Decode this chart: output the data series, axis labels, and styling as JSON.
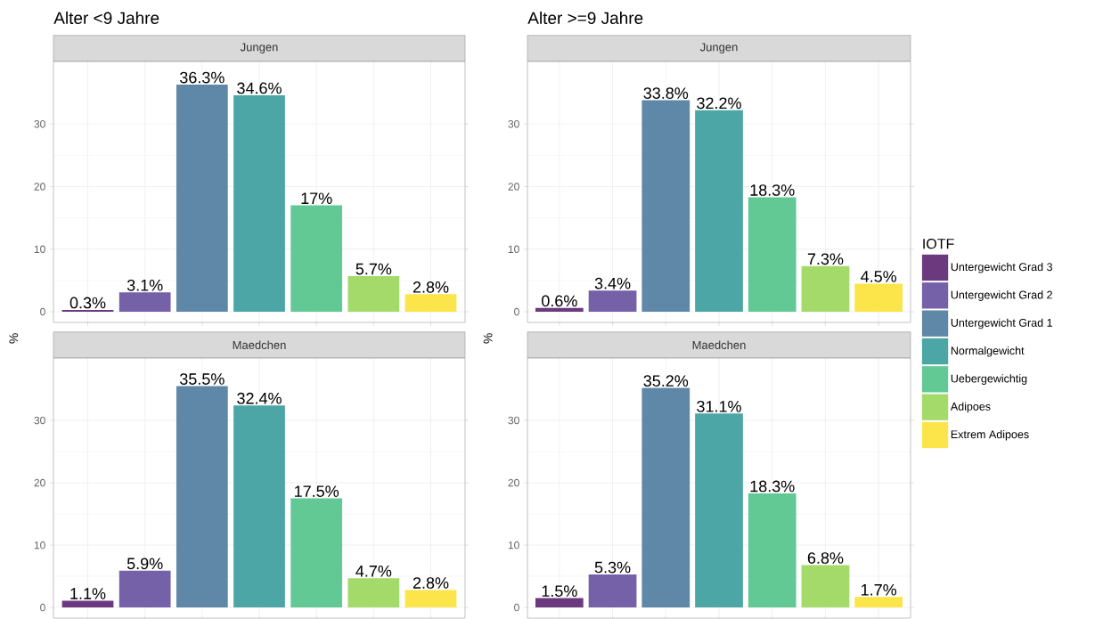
{
  "chart_data": [
    {
      "type": "bar",
      "title": "Alter <9 Jahre",
      "subtitle": "Jungen",
      "ylabel": "%",
      "categories": [
        null,
        null,
        null,
        null,
        null,
        null,
        null
      ],
      "ylim": [
        -1.7,
        40
      ],
      "yticks": [
        0,
        10,
        20,
        30
      ],
      "grid": true,
      "tick_labels": "y",
      "series": [
        {
          "color": "#6b3a7e",
          "values": [
            0.3,
            null,
            null,
            null,
            null,
            null,
            null
          ],
          "value_labels": [
            "0.3%",
            null,
            null,
            null,
            null,
            null,
            null
          ]
        },
        {
          "color": "#7461a8",
          "values": [
            null,
            3.1,
            null,
            null,
            null,
            null,
            null
          ],
          "value_labels": [
            null,
            "3.1%",
            null,
            null,
            null,
            null,
            null
          ]
        },
        {
          "color": "#5f87a8",
          "values": [
            null,
            null,
            36.3,
            null,
            null,
            null,
            null
          ],
          "value_labels": [
            null,
            null,
            "36.3%",
            null,
            null,
            null,
            null
          ]
        },
        {
          "color": "#4ca6a6",
          "values": [
            null,
            null,
            null,
            34.6,
            null,
            null,
            null
          ],
          "value_labels": [
            null,
            null,
            null,
            "34.6%",
            null,
            null,
            null
          ]
        },
        {
          "color": "#62c994",
          "values": [
            null,
            null,
            null,
            null,
            17,
            null,
            null
          ],
          "value_labels": [
            null,
            null,
            null,
            null,
            "17%",
            null,
            null
          ]
        },
        {
          "color": "#a4da6a",
          "values": [
            null,
            null,
            null,
            null,
            null,
            5.7,
            null
          ],
          "value_labels": [
            null,
            null,
            null,
            null,
            null,
            "5.7%",
            null
          ]
        },
        {
          "color": "#fbe54a",
          "values": [
            null,
            null,
            null,
            null,
            null,
            null,
            2.8
          ],
          "value_labels": [
            null,
            null,
            null,
            null,
            null,
            null,
            "2.8%"
          ]
        }
      ]
    },
    {
      "type": "bar",
      "title": "Alter >=9 Jahre",
      "subtitle": "Jungen",
      "ylabel": "%",
      "categories": [
        null,
        null,
        null,
        null,
        null,
        null,
        null
      ],
      "ylim": [
        -1.7,
        40
      ],
      "yticks": [
        0,
        10,
        20,
        30
      ],
      "grid": true,
      "tick_labels": "y",
      "legend": "right",
      "legend_title": "IOTF",
      "series": [
        {
          "name": "Untergewicht Grad 3",
          "color": "#6b3a7e",
          "values": [
            0.6,
            null,
            null,
            null,
            null,
            null,
            null
          ],
          "value_labels": [
            "0.6%",
            null,
            null,
            null,
            null,
            null,
            null
          ]
        },
        {
          "name": "Untergewicht Grad 2",
          "color": "#7461a8",
          "values": [
            null,
            3.4,
            null,
            null,
            null,
            null,
            null
          ],
          "value_labels": [
            null,
            "3.4%",
            null,
            null,
            null,
            null,
            null
          ]
        },
        {
          "name": "Untergewicht Grad 1",
          "color": "#5f87a8",
          "values": [
            null,
            null,
            33.8,
            null,
            null,
            null,
            null
          ],
          "value_labels": [
            null,
            null,
            "33.8%",
            null,
            null,
            null,
            null
          ]
        },
        {
          "name": "Normalgewicht",
          "color": "#4ca6a6",
          "values": [
            null,
            null,
            null,
            32.2,
            null,
            null,
            null
          ],
          "value_labels": [
            null,
            null,
            null,
            "32.2%",
            null,
            null,
            null
          ]
        },
        {
          "name": "Uebergewichtig",
          "color": "#62c994",
          "values": [
            null,
            null,
            null,
            null,
            18.3,
            null,
            null
          ],
          "value_labels": [
            null,
            null,
            null,
            null,
            "18.3%",
            null,
            null
          ]
        },
        {
          "name": "Adipoes",
          "color": "#a4da6a",
          "values": [
            null,
            null,
            null,
            null,
            null,
            7.3,
            null
          ],
          "value_labels": [
            null,
            null,
            null,
            null,
            null,
            "7.3%",
            null
          ]
        },
        {
          "name": "Extrem Adipoes",
          "color": "#fbe54a",
          "values": [
            null,
            null,
            null,
            null,
            null,
            null,
            4.5
          ],
          "value_labels": [
            null,
            null,
            null,
            null,
            null,
            null,
            "4.5%"
          ]
        }
      ]
    },
    {
      "type": "bar",
      "subtitle": "Maedchen",
      "categories": [
        null,
        null,
        null,
        null,
        null,
        null,
        null
      ],
      "ylim": [
        -1.7,
        40
      ],
      "yticks": [
        0,
        10,
        20,
        30
      ],
      "grid": true,
      "tick_labels": "y",
      "series": [
        {
          "color": "#6b3a7e",
          "values": [
            1.1,
            null,
            null,
            null,
            null,
            null,
            null
          ],
          "value_labels": [
            "1.1%",
            null,
            null,
            null,
            null,
            null,
            null
          ]
        },
        {
          "color": "#7461a8",
          "values": [
            null,
            5.9,
            null,
            null,
            null,
            null,
            null
          ],
          "value_labels": [
            null,
            "5.9%",
            null,
            null,
            null,
            null,
            null
          ]
        },
        {
          "color": "#5f87a8",
          "values": [
            null,
            null,
            35.5,
            null,
            null,
            null,
            null
          ],
          "value_labels": [
            null,
            null,
            "35.5%",
            null,
            null,
            null,
            null
          ]
        },
        {
          "color": "#4ca6a6",
          "values": [
            null,
            null,
            null,
            32.4,
            null,
            null,
            null
          ],
          "value_labels": [
            null,
            null,
            null,
            "32.4%",
            null,
            null,
            null
          ]
        },
        {
          "color": "#62c994",
          "values": [
            null,
            null,
            null,
            null,
            17.5,
            null,
            null
          ],
          "value_labels": [
            null,
            null,
            null,
            null,
            "17.5%",
            null,
            null
          ]
        },
        {
          "color": "#a4da6a",
          "values": [
            null,
            null,
            null,
            null,
            null,
            4.7,
            null
          ],
          "value_labels": [
            null,
            null,
            null,
            null,
            null,
            "4.7%",
            null
          ]
        },
        {
          "color": "#fbe54a",
          "values": [
            null,
            null,
            null,
            null,
            null,
            null,
            2.8
          ],
          "value_labels": [
            null,
            null,
            null,
            null,
            null,
            null,
            "2.8%"
          ]
        }
      ]
    },
    {
      "type": "bar",
      "subtitle": "Maedchen",
      "categories": [
        null,
        null,
        null,
        null,
        null,
        null,
        null
      ],
      "ylim": [
        -1.7,
        40
      ],
      "yticks": [
        0,
        10,
        20,
        30
      ],
      "grid": true,
      "tick_labels": "y",
      "series": [
        {
          "color": "#6b3a7e",
          "values": [
            1.5,
            null,
            null,
            null,
            null,
            null,
            null
          ],
          "value_labels": [
            "1.5%",
            null,
            null,
            null,
            null,
            null,
            null
          ]
        },
        {
          "color": "#7461a8",
          "values": [
            null,
            5.3,
            null,
            null,
            null,
            null,
            null
          ],
          "value_labels": [
            null,
            "5.3%",
            null,
            null,
            null,
            null,
            null
          ]
        },
        {
          "color": "#5f87a8",
          "values": [
            null,
            null,
            35.2,
            null,
            null,
            null,
            null
          ],
          "value_labels": [
            null,
            null,
            "35.2%",
            null,
            null,
            null,
            null
          ]
        },
        {
          "color": "#4ca6a6",
          "values": [
            null,
            null,
            null,
            31.1,
            null,
            null,
            null
          ],
          "value_labels": [
            null,
            null,
            null,
            "31.1%",
            null,
            null,
            null
          ]
        },
        {
          "color": "#62c994",
          "values": [
            null,
            null,
            null,
            null,
            18.3,
            null,
            null
          ],
          "value_labels": [
            null,
            null,
            null,
            null,
            "18.3%",
            null,
            null
          ]
        },
        {
          "color": "#a4da6a",
          "values": [
            null,
            null,
            null,
            null,
            null,
            6.8,
            null
          ],
          "value_labels": [
            null,
            null,
            null,
            null,
            null,
            "6.8%",
            null
          ]
        },
        {
          "color": "#fbe54a",
          "values": [
            null,
            null,
            null,
            null,
            null,
            null,
            1.7
          ],
          "value_labels": [
            null,
            null,
            null,
            null,
            null,
            null,
            "1.7%"
          ]
        }
      ]
    }
  ]
}
